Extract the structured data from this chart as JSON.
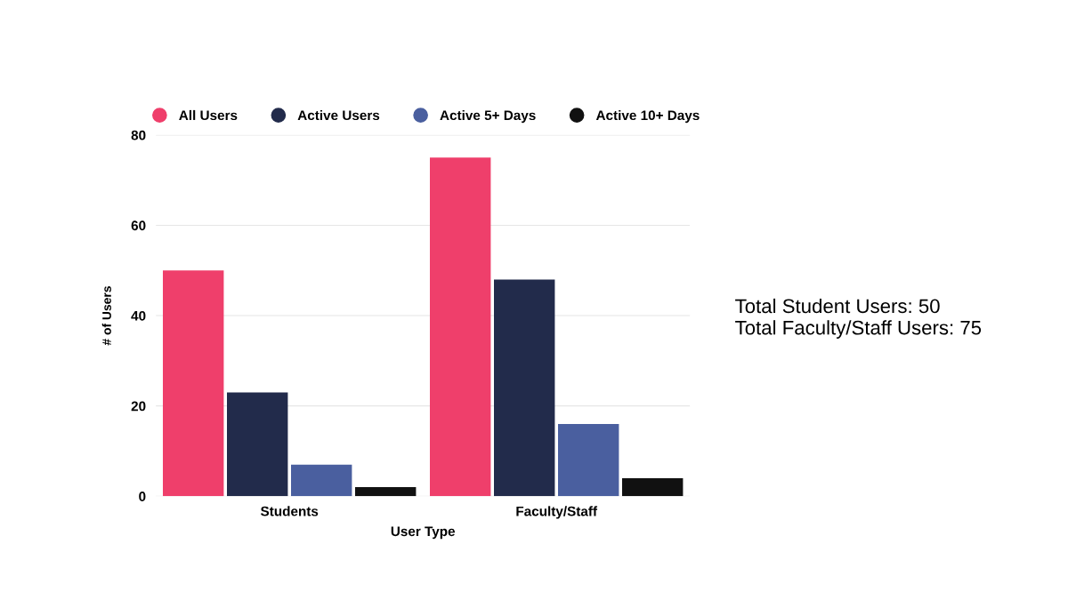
{
  "chart_data": {
    "type": "bar",
    "xlabel": "User Type",
    "ylabel": "# of Users",
    "categories": [
      "Students",
      "Faculty/Staff"
    ],
    "series": [
      {
        "name": "All Users",
        "color": "#ef3f6b",
        "values": [
          50,
          75
        ]
      },
      {
        "name": "Active Users",
        "color": "#222b4b",
        "values": [
          23,
          48
        ]
      },
      {
        "name": "Active 5+ Days",
        "color": "#4a5f9f",
        "values": [
          7,
          16
        ]
      },
      {
        "name": "Active 10+ Days",
        "color": "#111111",
        "values": [
          2,
          4
        ]
      }
    ],
    "ylim": [
      0,
      80
    ],
    "yticks": [
      0,
      20,
      40,
      60,
      80
    ],
    "grid": "y",
    "legend": "top",
    "annotations": [
      "Total Student Users: 50",
      "Total Faculty/Staff Users: 75"
    ]
  }
}
